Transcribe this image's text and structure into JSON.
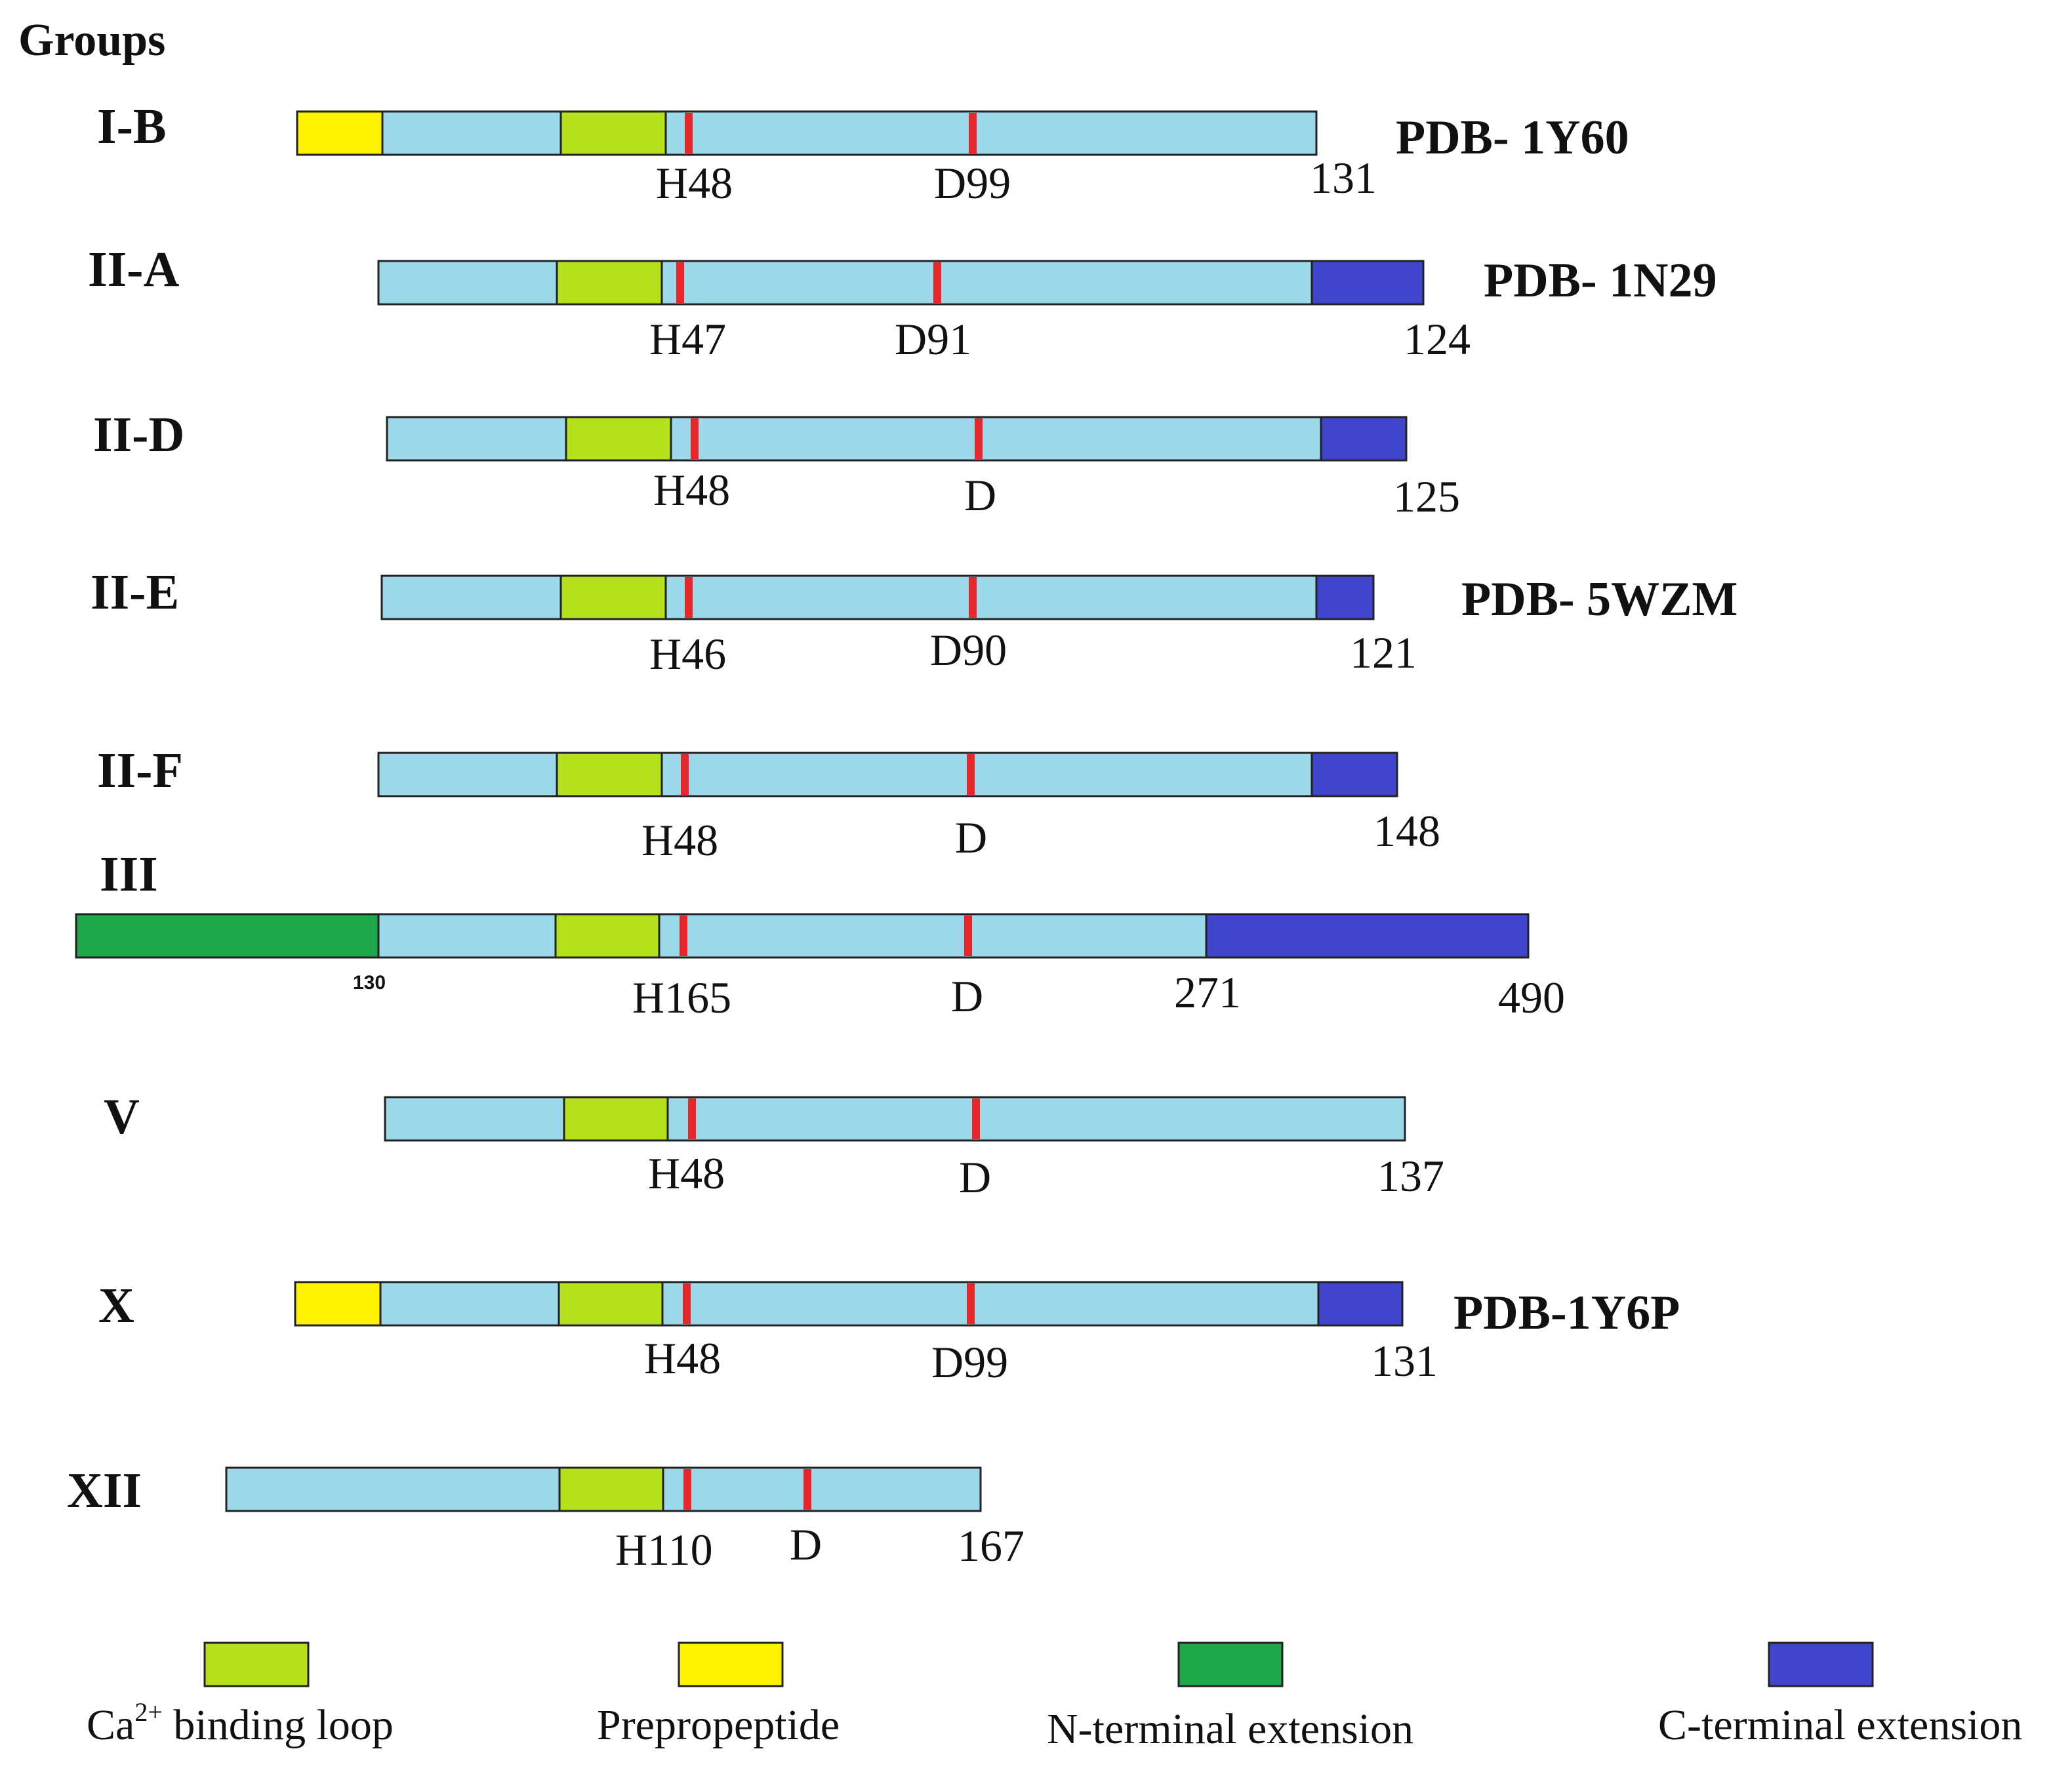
{
  "title": "Groups",
  "colors": {
    "core": "#9bd8ea",
    "ca_loop": "#b4e11c",
    "prepropeptide": "#fff200",
    "n_ext": "#1fa84a",
    "c_ext": "#3f45cc",
    "site": "#e8262a"
  },
  "rows": [
    {
      "id": "I-B",
      "group": "I-B",
      "segments": [
        "prepropeptide",
        "core",
        "ca_loop",
        "core",
        "core"
      ],
      "his": "H48",
      "asp": "D99",
      "end": "131",
      "pdb": "PDB- 1Y60",
      "mid": ""
    },
    {
      "id": "II-A",
      "group": "II-A",
      "segments": [
        "core",
        "ca_loop",
        "core",
        "core",
        "c_ext"
      ],
      "his": "H47",
      "asp": "D91",
      "end": "124",
      "pdb": "PDB- 1N29",
      "mid": ""
    },
    {
      "id": "II-D",
      "group": "II-D",
      "segments": [
        "core",
        "ca_loop",
        "core",
        "core",
        "c_ext"
      ],
      "his": "H48",
      "asp": "D",
      "end": "125",
      "pdb": "",
      "mid": ""
    },
    {
      "id": "II-E",
      "group": "II-E",
      "segments": [
        "core",
        "ca_loop",
        "core",
        "core",
        "c_ext"
      ],
      "his": "H46",
      "asp": "D90",
      "end": "121",
      "pdb": "PDB- 5WZM",
      "mid": ""
    },
    {
      "id": "II-F",
      "group": "II-F",
      "segments": [
        "core",
        "ca_loop",
        "core",
        "core",
        "c_ext"
      ],
      "his": "H48",
      "asp": "D",
      "end": "148",
      "pdb": "",
      "mid": ""
    },
    {
      "id": "III",
      "group": "III",
      "segments": [
        "n_ext",
        "core",
        "ca_loop",
        "core",
        "core",
        "c_ext"
      ],
      "his": "H165",
      "asp": "D",
      "end": "490",
      "pdb": "",
      "mid": "271",
      "start": "130"
    },
    {
      "id": "V",
      "group": "V",
      "segments": [
        "core",
        "ca_loop",
        "core",
        "core"
      ],
      "his": "H48",
      "asp": "D",
      "end": "137",
      "pdb": "",
      "mid": ""
    },
    {
      "id": "X",
      "group": "X",
      "segments": [
        "prepropeptide",
        "core",
        "ca_loop",
        "core",
        "core",
        "c_ext"
      ],
      "his": "H48",
      "asp": "D99",
      "end": "131",
      "pdb": "PDB-1Y6P",
      "mid": ""
    },
    {
      "id": "XII",
      "group": "XII",
      "segments": [
        "core",
        "ca_loop",
        "core",
        "core"
      ],
      "his": "H110",
      "asp": "D",
      "end": "167",
      "pdb": "",
      "mid": ""
    }
  ],
  "legend": [
    {
      "key": "ca_loop",
      "label": "binding loop",
      "prefix": "Ca",
      "sup": "2+"
    },
    {
      "key": "prepropeptide",
      "label": "Prepropeptide"
    },
    {
      "key": "n_ext",
      "label": "N-terminal extension"
    },
    {
      "key": "c_ext",
      "label": "C-terminal extension"
    }
  ]
}
